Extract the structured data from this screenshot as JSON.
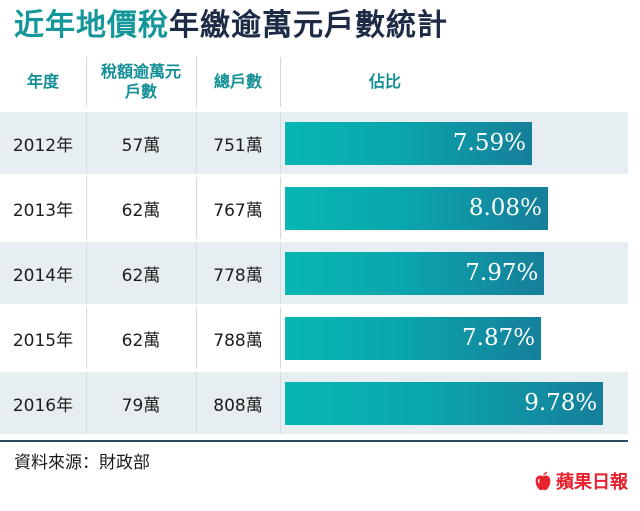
{
  "title": {
    "accent": "近年地價稅",
    "rest": "年繳逾萬元戶數統計"
  },
  "headers": {
    "year": "年度",
    "households": "稅額逾萬元\n戶數",
    "total": "總戶數",
    "ratio": "佔比"
  },
  "rows": [
    {
      "year": "2012年",
      "households": "57萬",
      "total": "751萬",
      "ratio_label": "7.59%"
    },
    {
      "year": "2013年",
      "households": "62萬",
      "total": "767萬",
      "ratio_label": "8.08%"
    },
    {
      "year": "2014年",
      "households": "62萬",
      "total": "778萬",
      "ratio_label": "7.97%"
    },
    {
      "year": "2015年",
      "households": "62萬",
      "total": "788萬",
      "ratio_label": "7.87%"
    },
    {
      "year": "2016年",
      "households": "79萬",
      "total": "808萬",
      "ratio_label": "9.78%"
    }
  ],
  "chart_data": {
    "type": "bar",
    "orientation": "horizontal",
    "categories": [
      "2012年",
      "2013年",
      "2014年",
      "2015年",
      "2016年"
    ],
    "values": [
      7.59,
      8.08,
      7.97,
      7.87,
      9.78
    ],
    "unit": "%",
    "bar_color": "#0aa6ad"
  },
  "source": "資料來源：財政部",
  "logo": {
    "text": "蘋果日報",
    "color": "#e8212e"
  },
  "colors": {
    "accent": "#13979a",
    "dark": "#1e2b46",
    "row_shade": "#e6eef1"
  }
}
